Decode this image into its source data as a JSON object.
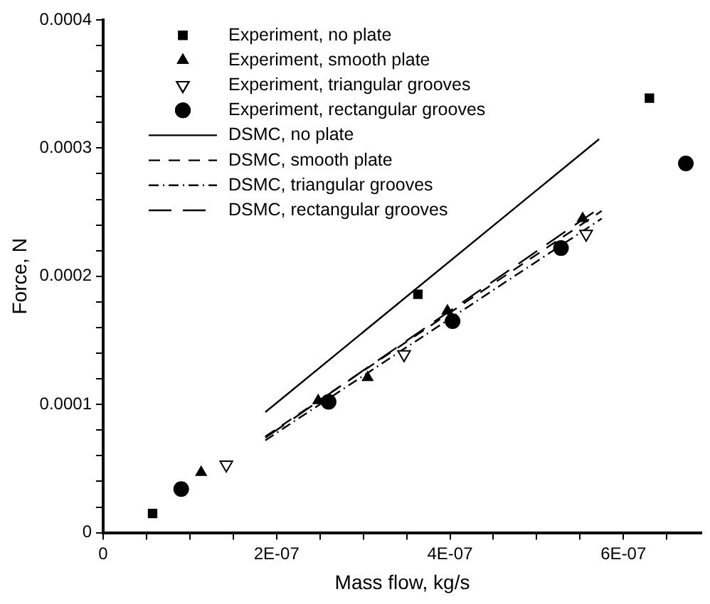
{
  "chart_data": {
    "type": "scatter",
    "xlabel": "Mass flow, kg/s",
    "ylabel": "Force, N",
    "xlim": [
      0,
      6.9e-07
    ],
    "xticks": [
      0,
      {
        "value": 5e-08,
        "label": null
      },
      {
        "value": 1e-07,
        "label": null
      },
      {
        "value": 1.5e-07,
        "label": null
      },
      {
        "value": 2e-07,
        "label": "2E-07"
      },
      {
        "value": 2.5e-07,
        "label": null
      },
      {
        "value": 3e-07,
        "label": null
      },
      {
        "value": 3.5e-07,
        "label": null
      },
      {
        "value": 4e-07,
        "label": "4E-07"
      },
      {
        "value": 4.5e-07,
        "label": null
      },
      {
        "value": 5e-07,
        "label": null
      },
      {
        "value": 5.5e-07,
        "label": null
      },
      {
        "value": 6e-07,
        "label": "6E-07"
      },
      {
        "value": 6.5e-07,
        "label": null
      }
    ],
    "ylim": [
      0,
      0.0004
    ],
    "yticks": [
      0,
      {
        "value": 2e-05,
        "label": null
      },
      {
        "value": 4e-05,
        "label": null
      },
      {
        "value": 6e-05,
        "label": null
      },
      {
        "value": 8e-05,
        "label": null
      },
      0.0001,
      {
        "value": 0.00012,
        "label": null
      },
      {
        "value": 0.00014,
        "label": null
      },
      {
        "value": 0.00016,
        "label": null
      },
      {
        "value": 0.00018,
        "label": null
      },
      0.0002,
      {
        "value": 0.00022,
        "label": null
      },
      {
        "value": 0.00024,
        "label": null
      },
      {
        "value": 0.00026,
        "label": null
      },
      {
        "value": 0.00028,
        "label": null
      },
      0.0003,
      {
        "value": 0.00032,
        "label": null
      },
      {
        "value": 0.00034,
        "label": null
      },
      {
        "value": 0.00036,
        "label": null
      },
      {
        "value": 0.00038,
        "label": null
      },
      0.0004
    ],
    "grid": false,
    "legend": "top left",
    "series": [
      {
        "name": "Experiment, no plate",
        "type": "scatter",
        "marker": "square",
        "color": "#000000",
        "x": [
          5.7e-08,
          3.63e-07,
          6.3e-07
        ],
        "values": [
          1.5e-05,
          0.000186,
          0.000339
        ]
      },
      {
        "name": "Experiment, smooth plate",
        "type": "scatter",
        "marker": "triangle",
        "color": "#000000",
        "x": [
          1.13e-07,
          2.48e-07,
          3.05e-07,
          3.97e-07,
          5.53e-07
        ],
        "values": [
          4.7e-05,
          0.000103,
          0.000121,
          0.000173,
          0.000245
        ]
      },
      {
        "name": "Experiment, triangular grooves",
        "type": "scatter",
        "marker": "triangle-down",
        "color": "#000000",
        "x": [
          1.42e-07,
          3.47e-07,
          5.57e-07
        ],
        "values": [
          5.3e-05,
          0.000139,
          0.000233
        ]
      },
      {
        "name": "Experiment, rectangular grooves",
        "type": "scatter",
        "marker": "circle",
        "color": "#000000",
        "x": [
          9e-08,
          2.6e-07,
          4.03e-07,
          5.28e-07,
          6.72e-07
        ],
        "values": [
          3.4e-05,
          0.000102,
          0.000165,
          0.000222,
          0.000288
        ]
      },
      {
        "name": "DSMC, no plate",
        "type": "line",
        "line_style": "solid",
        "color": "#000000",
        "x": [
          1.87e-07,
          5.72e-07
        ],
        "values": [
          9.4e-05,
          0.000307
        ]
      },
      {
        "name": "DSMC, smooth plate",
        "type": "line",
        "line_style": "dashed",
        "color": "#000000",
        "x": [
          1.87e-07,
          5.75e-07
        ],
        "values": [
          7.5e-05,
          0.000251
        ]
      },
      {
        "name": "DSMC, triangular grooves",
        "type": "line",
        "line_style": "dashdot",
        "color": "#000000",
        "x": [
          1.87e-07,
          5.75e-07
        ],
        "values": [
          7.2e-05,
          0.000245
        ]
      },
      {
        "name": "DSMC, rectangular grooves",
        "type": "line",
        "line_style": "longdash",
        "color": "#000000",
        "x": [
          1.87e-07,
          5.72e-07
        ],
        "values": [
          7.4e-05,
          0.000253
        ]
      }
    ]
  }
}
